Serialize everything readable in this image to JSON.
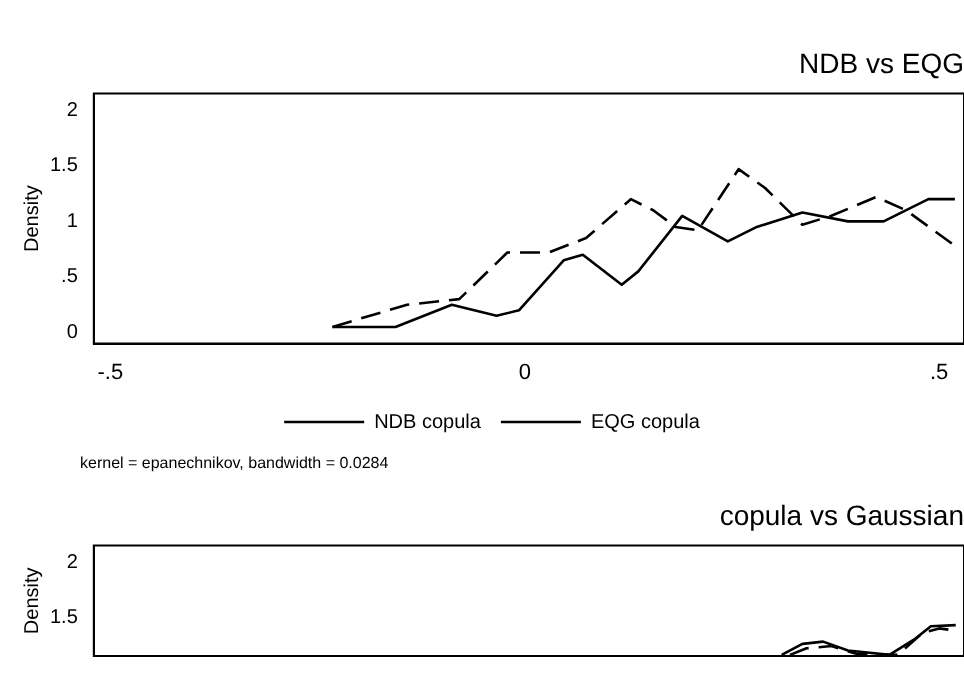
{
  "chart_data": [
    {
      "type": "line",
      "title": "NDB vs EQG",
      "ylabel": "Density",
      "xlim": [
        -0.52,
        0.53
      ],
      "xticks": [
        {
          "value": -0.5,
          "label": "-.5"
        },
        0,
        {
          "value": 0.5,
          "label": ".5"
        }
      ],
      "ylim": [
        -0.1,
        2.15
      ],
      "yticks": [
        0,
        {
          "value": 0.5,
          "label": ".5"
        },
        1,
        1.5,
        2
      ],
      "grid": false,
      "legend": "bottom",
      "marker": "none",
      "annotations": [
        "kernel = epanechnikov, bandwidth = 0.0284"
      ],
      "series": [
        {
          "name": "NDB copula",
          "color": "#000000",
          "line_style": "solid",
          "x": [
            -0.232,
            -0.156,
            -0.088,
            -0.034,
            -0.007,
            0.047,
            0.07,
            0.117,
            0.137,
            0.19,
            0.245,
            0.28,
            0.335,
            0.39,
            0.433,
            0.487,
            0.519
          ],
          "values": [
            0.05,
            0.05,
            0.25,
            0.15,
            0.2,
            0.65,
            0.7,
            0.43,
            0.55,
            1.05,
            0.82,
            0.95,
            1.08,
            1.0,
            1.0,
            1.2,
            1.2
          ]
        },
        {
          "name": "EQG copula",
          "color": "#000000",
          "line_style": "dashed",
          "x": [
            -0.232,
            -0.142,
            -0.079,
            -0.021,
            0.029,
            0.074,
            0.128,
            0.155,
            0.182,
            0.209,
            0.258,
            0.29,
            0.335,
            0.37,
            0.424,
            0.46,
            0.519
          ],
          "values": [
            0.05,
            0.25,
            0.3,
            0.72,
            0.72,
            0.85,
            1.2,
            1.1,
            0.95,
            0.92,
            1.47,
            1.3,
            0.97,
            1.05,
            1.22,
            1.1,
            0.78
          ]
        }
      ]
    },
    {
      "type": "line",
      "title": "copula vs Gaussian",
      "ylabel": "Density",
      "xlim": [
        -0.52,
        0.53
      ],
      "ylim": [
        1.15,
        2.15
      ],
      "yticks": [
        1.5,
        2
      ],
      "tick_labels": "y",
      "grid": false,
      "legend": false,
      "marker": "none",
      "series": [
        {
          "color": "#000000",
          "line_style": "solid",
          "x": [
            0.31,
            0.335,
            0.36,
            0.39,
            0.44,
            0.47,
            0.49,
            0.52
          ],
          "values": [
            1.16,
            1.26,
            1.28,
            1.2,
            1.16,
            1.3,
            1.42,
            1.43
          ]
        },
        {
          "color": "#000000",
          "line_style": "dashed",
          "x": [
            0.32,
            0.34,
            0.37,
            0.4,
            0.45,
            0.48,
            0.5,
            0.52
          ],
          "values": [
            1.16,
            1.22,
            1.24,
            1.17,
            1.16,
            1.36,
            1.4,
            1.38
          ]
        }
      ]
    }
  ]
}
